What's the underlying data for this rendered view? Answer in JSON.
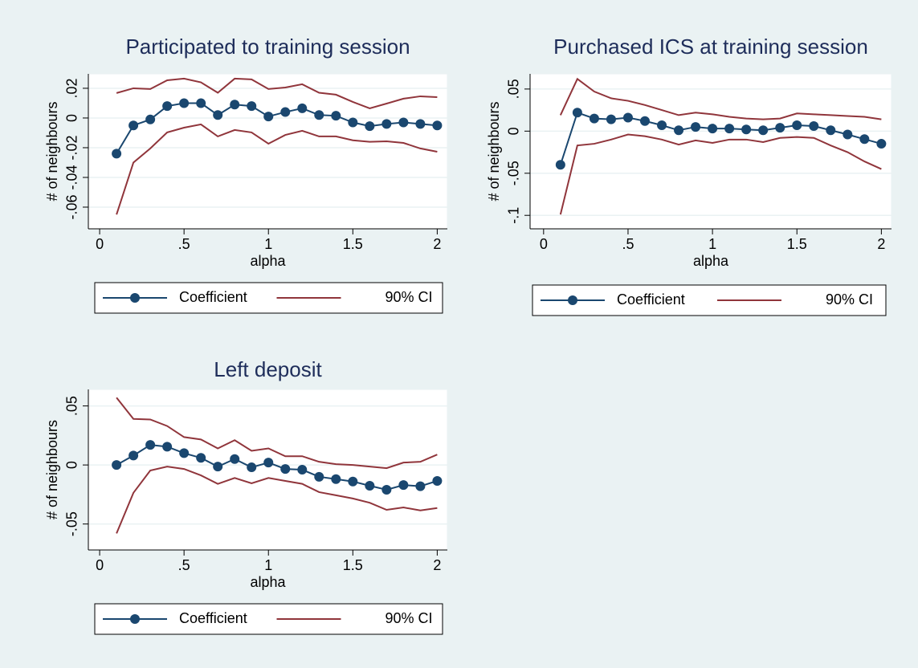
{
  "chart_data": [
    {
      "type": "line",
      "title": "Participated to training session",
      "xlabel": "alpha",
      "ylabel": "# of neighbours",
      "x": [
        0.1,
        0.2,
        0.3,
        0.4,
        0.5,
        0.6,
        0.7,
        0.8,
        0.9,
        1.0,
        1.1,
        1.2,
        1.3,
        1.4,
        1.5,
        1.6,
        1.7,
        1.8,
        1.9,
        2.0
      ],
      "xlim": [
        -0.067,
        2.06
      ],
      "xticks": [
        0,
        {
          "value": 0.5,
          "label": ".5"
        },
        1,
        1.5,
        2
      ],
      "ylim": [
        -0.0746,
        0.0297
      ],
      "yticks": [
        {
          "value": -0.06,
          "label": "-.06"
        },
        {
          "value": -0.04,
          "label": "-.04"
        },
        {
          "value": -0.02,
          "label": "-.02"
        },
        0,
        {
          "value": 0.02,
          "label": ".02"
        }
      ],
      "grid": true,
      "series": [
        {
          "name": "Coefficient",
          "color": "#1a476f",
          "marker": true,
          "values": [
            -0.024,
            -0.005,
            -0.001,
            0.008,
            0.01,
            0.01,
            0.002,
            0.009,
            0.008,
            0.001,
            0.004,
            0.0065,
            0.002,
            0.0015,
            -0.003,
            -0.0055,
            -0.004,
            -0.003,
            -0.004,
            -0.005
          ]
        },
        {
          "name": "90% CI",
          "color": "#90353b",
          "upper": [
            0.0168,
            0.02,
            0.0195,
            0.0254,
            0.0265,
            0.024,
            0.017,
            0.0265,
            0.026,
            0.0195,
            0.0205,
            0.0227,
            0.017,
            0.0157,
            0.0108,
            0.0065,
            0.0097,
            0.013,
            0.0146,
            0.014
          ],
          "lower": [
            -0.065,
            -0.03,
            -0.0205,
            -0.0097,
            -0.0065,
            -0.0043,
            -0.0124,
            -0.0081,
            -0.0097,
            -0.0173,
            -0.0114,
            -0.0086,
            -0.0124,
            -0.0124,
            -0.015,
            -0.016,
            -0.0157,
            -0.0168,
            -0.0205,
            -0.0227
          ]
        }
      ]
    },
    {
      "type": "line",
      "title": "Purchased ICS at training session",
      "xlabel": "alpha",
      "ylabel": "# of neighbours",
      "x": [
        0.1,
        0.2,
        0.3,
        0.4,
        0.5,
        0.6,
        0.7,
        0.8,
        0.9,
        1.0,
        1.1,
        1.2,
        1.3,
        1.4,
        1.5,
        1.6,
        1.7,
        1.8,
        1.9,
        2.0
      ],
      "xlim": [
        -0.08,
        2.06
      ],
      "xticks": [
        0,
        {
          "value": 0.5,
          "label": ".5"
        },
        1,
        1.5,
        2
      ],
      "ylim": [
        -0.116,
        0.068
      ],
      "yticks": [
        {
          "value": -0.1,
          "label": "-.1"
        },
        {
          "value": -0.05,
          "label": "-.05"
        },
        0,
        {
          "value": 0.05,
          "label": ".05"
        }
      ],
      "grid": true,
      "series": [
        {
          "name": "Coefficient",
          "color": "#1a476f",
          "marker": true,
          "values": [
            -0.04,
            0.022,
            0.015,
            0.014,
            0.016,
            0.012,
            0.007,
            0.001,
            0.005,
            0.003,
            0.003,
            0.002,
            0.001,
            0.004,
            0.007,
            0.006,
            0.001,
            -0.004,
            -0.0095,
            -0.015
          ]
        },
        {
          "name": "90% CI",
          "color": "#90353b",
          "upper": [
            0.019,
            0.062,
            0.047,
            0.039,
            0.036,
            0.031,
            0.025,
            0.019,
            0.022,
            0.02,
            0.017,
            0.015,
            0.014,
            0.015,
            0.021,
            0.02,
            0.019,
            0.018,
            0.017,
            0.014
          ],
          "lower": [
            -0.099,
            -0.017,
            -0.015,
            -0.01,
            -0.004,
            -0.006,
            -0.01,
            -0.016,
            -0.011,
            -0.014,
            -0.01,
            -0.01,
            -0.013,
            -0.008,
            -0.007,
            -0.008,
            -0.017,
            -0.025,
            -0.036,
            -0.045
          ]
        }
      ]
    },
    {
      "type": "line",
      "title": "Left deposit",
      "xlabel": "alpha",
      "ylabel": "# of neighbours",
      "x": [
        0.1,
        0.2,
        0.3,
        0.4,
        0.5,
        0.6,
        0.7,
        0.8,
        0.9,
        1.0,
        1.1,
        1.2,
        1.3,
        1.4,
        1.5,
        1.6,
        1.7,
        1.8,
        1.9,
        2.0
      ],
      "xlim": [
        -0.067,
        2.06
      ],
      "xticks": [
        0,
        {
          "value": 0.5,
          "label": ".5"
        },
        1,
        1.5,
        2
      ],
      "ylim": [
        -0.072,
        0.064
      ],
      "yticks": [
        {
          "value": -0.05,
          "label": "-.05"
        },
        0,
        {
          "value": 0.05,
          "label": ".05"
        }
      ],
      "grid": true,
      "series": [
        {
          "name": "Coefficient",
          "color": "#1a476f",
          "marker": true,
          "values": [
            0,
            0.008,
            0.017,
            0.0155,
            0.01,
            0.006,
            -0.0014,
            0.005,
            -0.002,
            0.002,
            -0.0034,
            -0.004,
            -0.01,
            -0.012,
            -0.014,
            -0.0176,
            -0.021,
            -0.017,
            -0.018,
            -0.0135
          ]
        },
        {
          "name": "90% CI",
          "color": "#90353b",
          "upper": [
            0.057,
            0.039,
            0.0385,
            0.033,
            0.0236,
            0.0216,
            0.014,
            0.021,
            0.012,
            0.014,
            0.0074,
            0.0074,
            0.0027,
            0.0007,
            0,
            -0.0014,
            -0.0027,
            0.002,
            0.0027,
            0.0088
          ],
          "lower": [
            -0.058,
            -0.0236,
            -0.0047,
            -0.0014,
            -0.0034,
            -0.0088,
            -0.016,
            -0.011,
            -0.0155,
            -0.011,
            -0.0135,
            -0.016,
            -0.023,
            -0.0257,
            -0.0284,
            -0.032,
            -0.038,
            -0.036,
            -0.0385,
            -0.0365
          ]
        }
      ]
    }
  ]
}
